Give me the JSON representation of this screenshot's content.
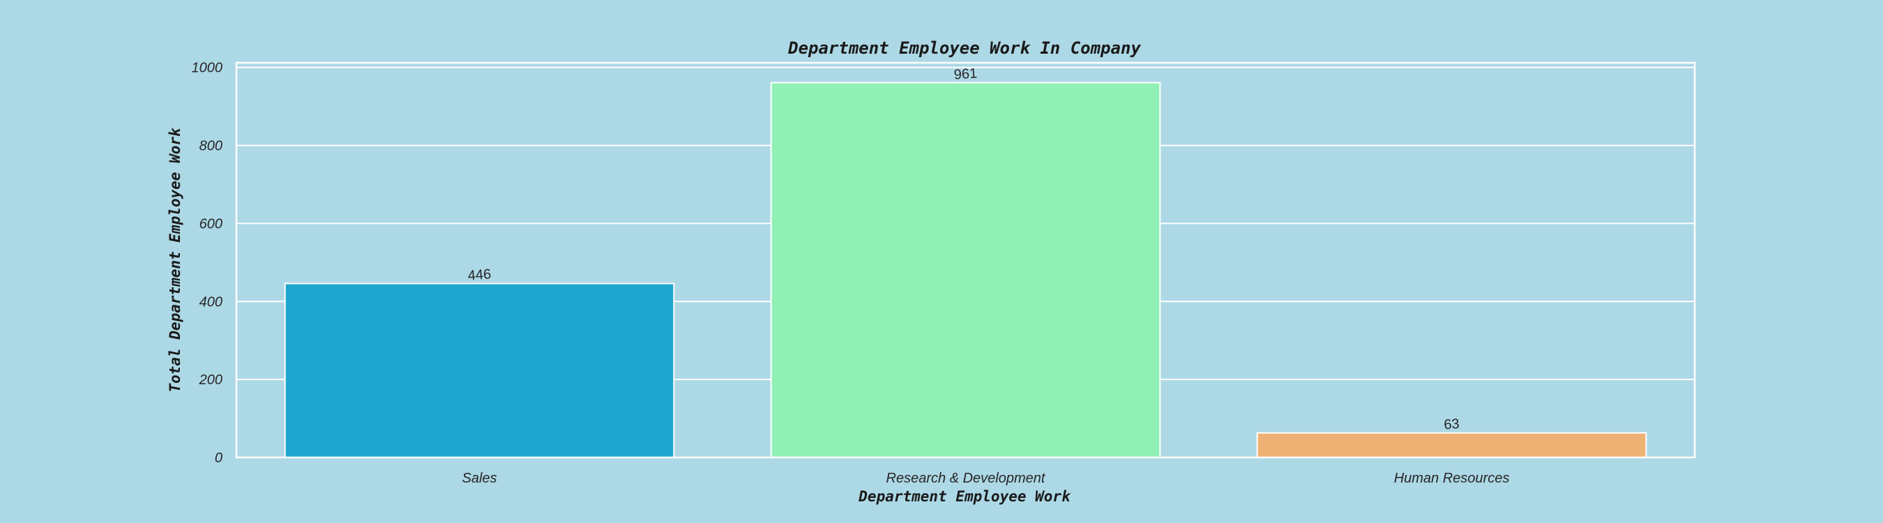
{
  "chart_data": {
    "type": "bar",
    "title": "Department Employee Work In Company",
    "xlabel": "Department Employee Work",
    "ylabel": "Total Department Employee Work",
    "categories": [
      "Sales",
      "Research & Development",
      "Human Resources"
    ],
    "values": [
      446,
      961,
      63
    ],
    "data_labels": [
      "446",
      "961",
      "63"
    ],
    "bar_colors": [
      "#1FA6CF",
      "#90F0B5",
      "#EEB174"
    ],
    "ylim": [
      0,
      1000
    ],
    "yticks": [
      0,
      200,
      400,
      600,
      800,
      1000
    ],
    "ytick_labels": [
      "0",
      "200",
      "400",
      "600",
      "800",
      "1000"
    ],
    "grid": true,
    "background_color": "#ADD8E6",
    "grid_color": "#FFFFFF"
  }
}
